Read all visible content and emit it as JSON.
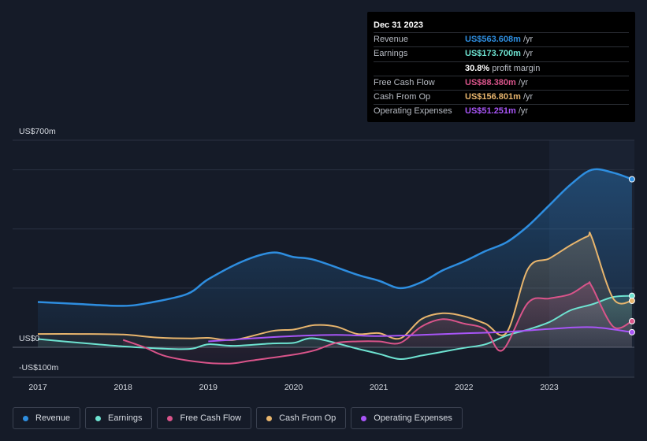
{
  "tooltip": {
    "date": "Dec 31 2023",
    "rows": [
      {
        "label": "Revenue",
        "value": "US$563.608m",
        "unit": "/yr",
        "color": "#2e8ee0"
      },
      {
        "label": "Earnings",
        "value": "US$173.700m",
        "unit": "/yr",
        "color": "#6ee3d1"
      },
      {
        "label": "",
        "value": "30.8%",
        "unit": "profit margin",
        "color": "#ffffff"
      },
      {
        "label": "Free Cash Flow",
        "value": "US$88.380m",
        "unit": "/yr",
        "color": "#d9548a"
      },
      {
        "label": "Cash From Op",
        "value": "US$156.801m",
        "unit": "/yr",
        "color": "#e8b56d"
      },
      {
        "label": "Operating Expenses",
        "value": "US$51.251m",
        "unit": "/yr",
        "color": "#a855f7"
      }
    ]
  },
  "legend": [
    {
      "label": "Revenue",
      "color": "#2e8ee0"
    },
    {
      "label": "Earnings",
      "color": "#6ee3d1"
    },
    {
      "label": "Free Cash Flow",
      "color": "#d9548a"
    },
    {
      "label": "Cash From Op",
      "color": "#e8b56d"
    },
    {
      "label": "Operating Expenses",
      "color": "#a855f7"
    }
  ],
  "chart_data": {
    "type": "line",
    "ylabels": [
      "US$700m",
      "US$0",
      "-US$100m"
    ],
    "ylim": [
      -100,
      700
    ],
    "xlim": [
      2016.9,
      2024.0
    ],
    "xticks": [
      {
        "value": 2017,
        "label": "2017"
      },
      {
        "value": 2018,
        "label": "2018"
      },
      {
        "value": 2019,
        "label": "2019"
      },
      {
        "value": 2020,
        "label": "2020"
      },
      {
        "value": 2021,
        "label": "2021"
      },
      {
        "value": 2022,
        "label": "2022"
      },
      {
        "value": 2023,
        "label": "2023"
      }
    ],
    "highlight_from": 2023.0,
    "grid": true,
    "legend_position": "bottom",
    "series": [
      {
        "name": "Revenue",
        "color": "#2e8ee0",
        "fill": true,
        "points": [
          [
            2017.0,
            153
          ],
          [
            2017.5,
            146
          ],
          [
            2018.0,
            140
          ],
          [
            2018.3,
            150
          ],
          [
            2018.75,
            180
          ],
          [
            2019.0,
            230
          ],
          [
            2019.4,
            290
          ],
          [
            2019.75,
            320
          ],
          [
            2020.0,
            305
          ],
          [
            2020.25,
            295
          ],
          [
            2020.75,
            245
          ],
          [
            2021.0,
            225
          ],
          [
            2021.25,
            200
          ],
          [
            2021.5,
            220
          ],
          [
            2021.75,
            260
          ],
          [
            2022.0,
            290
          ],
          [
            2022.25,
            325
          ],
          [
            2022.5,
            355
          ],
          [
            2022.75,
            410
          ],
          [
            2023.0,
            480
          ],
          [
            2023.25,
            550
          ],
          [
            2023.5,
            600
          ],
          [
            2023.75,
            590
          ],
          [
            2023.97,
            568
          ]
        ]
      },
      {
        "name": "Earnings",
        "color": "#6ee3d1",
        "fill": true,
        "points": [
          [
            2017.0,
            28
          ],
          [
            2017.5,
            15
          ],
          [
            2018.0,
            3
          ],
          [
            2018.5,
            -5
          ],
          [
            2018.8,
            -5
          ],
          [
            2019.0,
            10
          ],
          [
            2019.3,
            5
          ],
          [
            2019.75,
            13
          ],
          [
            2020.0,
            15
          ],
          [
            2020.25,
            30
          ],
          [
            2020.75,
            -5
          ],
          [
            2021.0,
            -22
          ],
          [
            2021.25,
            -40
          ],
          [
            2021.5,
            -28
          ],
          [
            2021.75,
            -15
          ],
          [
            2022.0,
            -2
          ],
          [
            2022.25,
            10
          ],
          [
            2022.5,
            40
          ],
          [
            2022.75,
            60
          ],
          [
            2023.0,
            85
          ],
          [
            2023.25,
            125
          ],
          [
            2023.5,
            145
          ],
          [
            2023.75,
            170
          ],
          [
            2023.97,
            174
          ]
        ]
      },
      {
        "name": "Free Cash Flow",
        "color": "#d9548a",
        "fill": true,
        "points": [
          [
            2018.0,
            25
          ],
          [
            2018.25,
            0
          ],
          [
            2018.5,
            -30
          ],
          [
            2018.9,
            -50
          ],
          [
            2019.25,
            -55
          ],
          [
            2019.5,
            -45
          ],
          [
            2020.0,
            -25
          ],
          [
            2020.25,
            -10
          ],
          [
            2020.5,
            15
          ],
          [
            2020.75,
            20
          ],
          [
            2021.0,
            20
          ],
          [
            2021.25,
            15
          ],
          [
            2021.5,
            70
          ],
          [
            2021.75,
            95
          ],
          [
            2022.0,
            80
          ],
          [
            2022.25,
            60
          ],
          [
            2022.45,
            -10
          ],
          [
            2022.75,
            150
          ],
          [
            2023.0,
            165
          ],
          [
            2023.25,
            180
          ],
          [
            2023.45,
            215
          ],
          [
            2023.5,
            205
          ],
          [
            2023.75,
            70
          ],
          [
            2023.97,
            88
          ]
        ]
      },
      {
        "name": "Cash From Op",
        "color": "#e8b56d",
        "fill": true,
        "points": [
          [
            2017.0,
            45
          ],
          [
            2017.5,
            45
          ],
          [
            2018.0,
            43
          ],
          [
            2018.4,
            33
          ],
          [
            2018.8,
            30
          ],
          [
            2019.0,
            32
          ],
          [
            2019.3,
            25
          ],
          [
            2019.75,
            55
          ],
          [
            2020.0,
            60
          ],
          [
            2020.25,
            75
          ],
          [
            2020.5,
            70
          ],
          [
            2020.75,
            45
          ],
          [
            2021.0,
            48
          ],
          [
            2021.25,
            30
          ],
          [
            2021.5,
            95
          ],
          [
            2021.75,
            115
          ],
          [
            2022.0,
            105
          ],
          [
            2022.25,
            80
          ],
          [
            2022.5,
            50
          ],
          [
            2022.75,
            265
          ],
          [
            2023.0,
            300
          ],
          [
            2023.25,
            345
          ],
          [
            2023.45,
            375
          ],
          [
            2023.5,
            370
          ],
          [
            2023.75,
            165
          ],
          [
            2023.97,
            157
          ]
        ]
      },
      {
        "name": "Operating Expenses",
        "color": "#a855f7",
        "fill": false,
        "points": [
          [
            2019.0,
            20
          ],
          [
            2019.5,
            30
          ],
          [
            2020.0,
            38
          ],
          [
            2020.5,
            42
          ],
          [
            2021.0,
            38
          ],
          [
            2021.5,
            42
          ],
          [
            2022.0,
            47
          ],
          [
            2022.5,
            52
          ],
          [
            2023.0,
            62
          ],
          [
            2023.5,
            68
          ],
          [
            2023.97,
            51
          ]
        ]
      }
    ]
  }
}
